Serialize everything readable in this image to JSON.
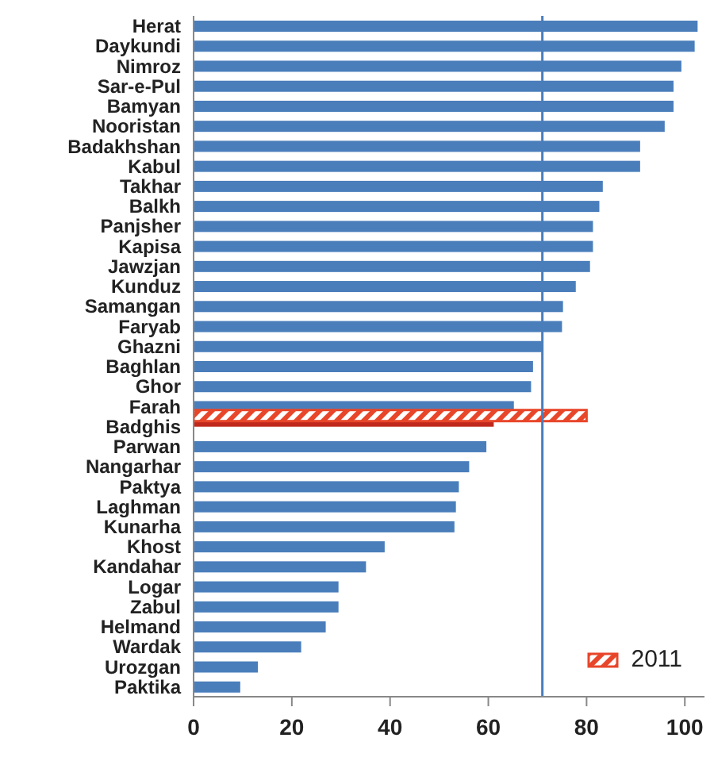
{
  "chart_data": {
    "type": "bar",
    "orientation": "horizontal",
    "categories": [
      "Herat",
      "Daykundi",
      "Nimroz",
      "Sar-e-Pul",
      "Bamyan",
      "Nooristan",
      "Badakhshan",
      "Kabul",
      "Takhar",
      "Balkh",
      "Panjsher",
      "Kapisa",
      "Jawzjan",
      "Kunduz",
      "Samangan",
      "Faryab",
      "Ghazni",
      "Baghlan",
      "Ghor",
      "Farah",
      "Badghis",
      "Parwan",
      "Nangarhar",
      "Paktya",
      "Laghman",
      "Kunarha",
      "Khost",
      "Kandahar",
      "Logar",
      "Zabul",
      "Helmand",
      "Wardak",
      "Urozgan",
      "Paktika"
    ],
    "series": [
      {
        "color": "#4a7ebb",
        "colors": [
          "#4a7ebb",
          "#4a7ebb",
          "#4a7ebb",
          "#4a7ebb",
          "#4a7ebb",
          "#4a7ebb",
          "#4a7ebb",
          "#4a7ebb",
          "#4a7ebb",
          "#4a7ebb",
          "#4a7ebb",
          "#4a7ebb",
          "#4a7ebb",
          "#4a7ebb",
          "#4a7ebb",
          "#4a7ebb",
          "#4a7ebb",
          "#4a7ebb",
          "#4a7ebb",
          "#4a7ebb",
          "#c0281c",
          "#4a7ebb",
          "#4a7ebb",
          "#4a7ebb",
          "#4a7ebb",
          "#4a7ebb",
          "#4a7ebb",
          "#4a7ebb",
          "#4a7ebb",
          "#4a7ebb",
          "#4a7ebb",
          "#4a7ebb",
          "#4a7ebb",
          "#4a7ebb"
        ],
        "values": [
          102.6,
          102,
          99.3,
          97.7,
          97.7,
          95.9,
          90.9,
          90.9,
          83.3,
          82.6,
          81.3,
          81.3,
          80.7,
          77.8,
          75.2,
          75,
          71,
          69.1,
          68.7,
          65.2,
          61.1,
          59.6,
          56.1,
          54,
          53.4,
          53.1,
          38.9,
          35.1,
          29.5,
          29.5,
          26.9,
          21.9,
          13.1,
          9.5
        ]
      },
      {
        "name": "2011",
        "color": "#e8462a",
        "values": [
          null,
          null,
          null,
          null,
          null,
          null,
          null,
          null,
          null,
          null,
          null,
          null,
          null,
          null,
          null,
          null,
          null,
          null,
          null,
          null,
          80,
          null,
          null,
          null,
          null,
          null,
          null,
          null,
          null,
          null,
          null,
          null,
          null,
          null
        ]
      }
    ],
    "xlim": [
      0,
      104
    ],
    "xticks": [
      0,
      20,
      40,
      60,
      80,
      100
    ],
    "ref_lines": [
      {
        "axis": "x",
        "value": 71,
        "color": "#4a7ebb"
      }
    ],
    "legend": "bottom right"
  }
}
